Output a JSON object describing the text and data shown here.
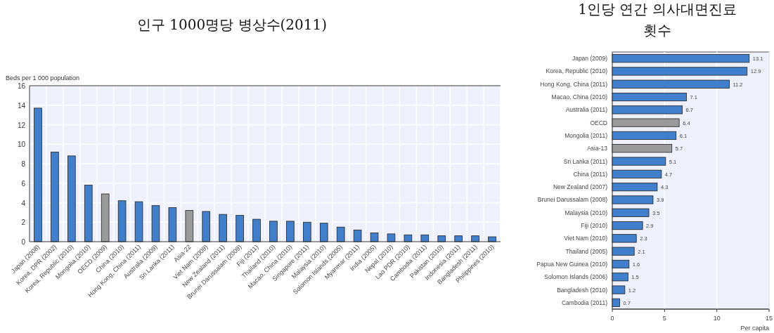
{
  "chart_data": [
    {
      "type": "bar",
      "title": "인구 1000명당 병상수(2011)",
      "ylabel": "Beds per 1 000 population",
      "categories": [
        "Japan (2008)",
        "Korea, DPR (2002)",
        "Korea, Republic (2010)",
        "Mongolia (2010)",
        "OECD (2009)",
        "China (2010)",
        "Hong Kong, China (2011)",
        "Australia (2009)",
        "Sri Lanka (2011)",
        "Asia-22",
        "Viet Nam (2009)",
        "New Zealand (2011)",
        "Brunei Darussalam (2009)",
        "Fiji (2011)",
        "Thailand (2010)",
        "Macao, China (2010)",
        "Singapore (2011)",
        "Malaysia (2010)",
        "Solomon Islands (2005)",
        "Myanmar (2011)",
        "India (2005)",
        "Nepal (2010)",
        "Lao PDR (2010)",
        "Cambodia (2011)",
        "Pakistan (2010)",
        "Indonesia (2011)",
        "Bangladesh (2011)",
        "Philippines (2010)"
      ],
      "values": [
        13.7,
        9.2,
        8.8,
        5.8,
        4.9,
        4.2,
        4.1,
        3.7,
        3.5,
        3.2,
        3.1,
        2.8,
        2.7,
        2.3,
        2.1,
        2.1,
        2.0,
        1.9,
        1.5,
        1.2,
        0.9,
        0.8,
        0.7,
        0.7,
        0.6,
        0.6,
        0.6,
        0.5
      ],
      "colors": [
        "#3f7fcc",
        "#3f7fcc",
        "#3f7fcc",
        "#3f7fcc",
        "#9a9a9a",
        "#3f7fcc",
        "#3f7fcc",
        "#3f7fcc",
        "#3f7fcc",
        "#9a9a9a",
        "#3f7fcc",
        "#3f7fcc",
        "#3f7fcc",
        "#3f7fcc",
        "#3f7fcc",
        "#3f7fcc",
        "#3f7fcc",
        "#3f7fcc",
        "#3f7fcc",
        "#3f7fcc",
        "#3f7fcc",
        "#3f7fcc",
        "#3f7fcc",
        "#3f7fcc",
        "#3f7fcc",
        "#3f7fcc",
        "#3f7fcc",
        "#3f7fcc"
      ],
      "ylim": [
        0,
        16
      ],
      "yticks": [
        0,
        2,
        4,
        6,
        8,
        10,
        12,
        14,
        16
      ],
      "grid": true
    },
    {
      "type": "bar",
      "orientation": "horizontal",
      "title": "1인당 연간 의사대면진료 횟수",
      "xlabel": "Per capita",
      "categories": [
        "Japan (2009)",
        "Korea, Republic (2010)",
        "Hong Kong, China (2011)",
        "Macao, China (2010)",
        "Australia (2011)",
        "OECD",
        "Mongolia (2011)",
        "Asia-13",
        "Sri Lanka (2011)",
        "China (2011)",
        "New Zealand (2007)",
        "Brunei Darussalam (2008)",
        "Malaysia (2010)",
        "Fiji (2010)",
        "Viet Nam (2010)",
        "Thailand (2005)",
        "Papua New Guinea (2010)",
        "Solomon Islands (2006)",
        "Bangladesh (2010)",
        "Cambodia (2011)"
      ],
      "values": [
        13.1,
        12.9,
        11.2,
        7.1,
        6.7,
        6.4,
        6.1,
        5.7,
        5.1,
        4.7,
        4.3,
        3.9,
        3.5,
        2.9,
        2.3,
        2.1,
        1.6,
        1.5,
        1.2,
        0.7
      ],
      "colors": [
        "#3f7fcc",
        "#3f7fcc",
        "#3f7fcc",
        "#3f7fcc",
        "#3f7fcc",
        "#9a9a9a",
        "#3f7fcc",
        "#9a9a9a",
        "#3f7fcc",
        "#3f7fcc",
        "#3f7fcc",
        "#3f7fcc",
        "#3f7fcc",
        "#3f7fcc",
        "#3f7fcc",
        "#3f7fcc",
        "#3f7fcc",
        "#3f7fcc",
        "#3f7fcc",
        "#3f7fcc"
      ],
      "xlim": [
        0,
        15
      ],
      "xticks": [
        0,
        5,
        10,
        15
      ],
      "grid": "x",
      "data_labels": true
    }
  ]
}
